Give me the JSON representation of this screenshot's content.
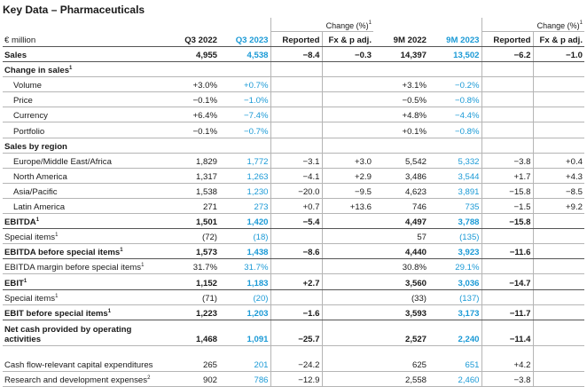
{
  "title": "Key Data – Pharmaceuticals",
  "header": {
    "change_label": "Change (%)",
    "change_sup": "1",
    "unit_label": "€ million",
    "col_q3_2022": "Q3 2022",
    "col_q3_2023": "Q3 2023",
    "col_reported_q": "Reported",
    "col_fx_q": "Fx & p adj.",
    "col_9m_2022": "9M 2022",
    "col_9m_2023": "9M 2023",
    "col_reported_9m": "Reported",
    "col_fx_9m": "Fx & p adj."
  },
  "rows": [
    {
      "label": "Sales",
      "sup": "",
      "v": [
        "4,955",
        "4,538",
        "−8.4",
        "−0.3",
        "14,397",
        "13,502",
        "−6.2",
        "−1.0"
      ]
    },
    {
      "label": "Change in sales",
      "sup": "1",
      "v": [
        "",
        "",
        "",
        "",
        "",
        "",
        "",
        ""
      ]
    },
    {
      "label": "Volume",
      "sup": "",
      "v": [
        "+3.0%",
        "+0.7%",
        "",
        "",
        "+3.1%",
        "−0.2%",
        "",
        ""
      ]
    },
    {
      "label": "Price",
      "sup": "",
      "v": [
        "−0.1%",
        "−1.0%",
        "",
        "",
        "−0.5%",
        "−0.8%",
        "",
        ""
      ]
    },
    {
      "label": "Currency",
      "sup": "",
      "v": [
        "+6.4%",
        "−7.4%",
        "",
        "",
        "+4.8%",
        "−4.4%",
        "",
        ""
      ]
    },
    {
      "label": "Portfolio",
      "sup": "",
      "v": [
        "−0.1%",
        "−0.7%",
        "",
        "",
        "+0.1%",
        "−0.8%",
        "",
        ""
      ]
    },
    {
      "label": "Sales by region",
      "sup": "",
      "v": [
        "",
        "",
        "",
        "",
        "",
        "",
        "",
        ""
      ]
    },
    {
      "label": "Europe/Middle East/Africa",
      "sup": "",
      "v": [
        "1,829",
        "1,772",
        "−3.1",
        "+3.0",
        "5,542",
        "5,332",
        "−3.8",
        "+0.4"
      ]
    },
    {
      "label": "North America",
      "sup": "",
      "v": [
        "1,317",
        "1,263",
        "−4.1",
        "+2.9",
        "3,486",
        "3,544",
        "+1.7",
        "+4.3"
      ]
    },
    {
      "label": "Asia/Pacific",
      "sup": "",
      "v": [
        "1,538",
        "1,230",
        "−20.0",
        "−9.5",
        "4,623",
        "3,891",
        "−15.8",
        "−8.5"
      ]
    },
    {
      "label": "Latin America",
      "sup": "",
      "v": [
        "271",
        "273",
        "+0.7",
        "+13.6",
        "746",
        "735",
        "−1.5",
        "+9.2"
      ]
    },
    {
      "label": "EBITDA",
      "sup": "1",
      "v": [
        "1,501",
        "1,420",
        "−5.4",
        "",
        "4,497",
        "3,788",
        "−15.8",
        ""
      ]
    },
    {
      "label": "Special items",
      "sup": "1",
      "v": [
        "(72)",
        "(18)",
        "",
        "",
        "57",
        "(135)",
        "",
        ""
      ]
    },
    {
      "label": "EBITDA before special items",
      "sup": "1",
      "v": [
        "1,573",
        "1,438",
        "−8.6",
        "",
        "4,440",
        "3,923",
        "−11.6",
        ""
      ]
    },
    {
      "label": "EBITDA margin before special items",
      "sup": "1",
      "v": [
        "31.7%",
        "31.7%",
        "",
        "",
        "30.8%",
        "29.1%",
        "",
        ""
      ]
    },
    {
      "label": "EBIT",
      "sup": "1",
      "v": [
        "1,152",
        "1,183",
        "+2.7",
        "",
        "3,560",
        "3,036",
        "−14.7",
        ""
      ]
    },
    {
      "label": "Special items",
      "sup": "1",
      "v": [
        "(71)",
        "(20)",
        "",
        "",
        "(33)",
        "(137)",
        "",
        ""
      ]
    },
    {
      "label": "EBIT before special items",
      "sup": "1",
      "v": [
        "1,223",
        "1,203",
        "−1.6",
        "",
        "3,593",
        "3,173",
        "−11.7",
        ""
      ]
    },
    {
      "label": "Net cash provided by operating activities",
      "sup": "",
      "v": [
        "1,468",
        "1,091",
        "−25.7",
        "",
        "2,527",
        "2,240",
        "−11.4",
        ""
      ]
    },
    {
      "label": "Cash flow-relevant capital expenditures",
      "sup": "",
      "v": [
        "265",
        "201",
        "−24.2",
        "",
        "625",
        "651",
        "+4.2",
        ""
      ]
    },
    {
      "label": "Research and development expenses",
      "sup": "2",
      "v": [
        "902",
        "786",
        "−12.9",
        "",
        "2,558",
        "2,460",
        "−3.8",
        ""
      ]
    }
  ]
}
